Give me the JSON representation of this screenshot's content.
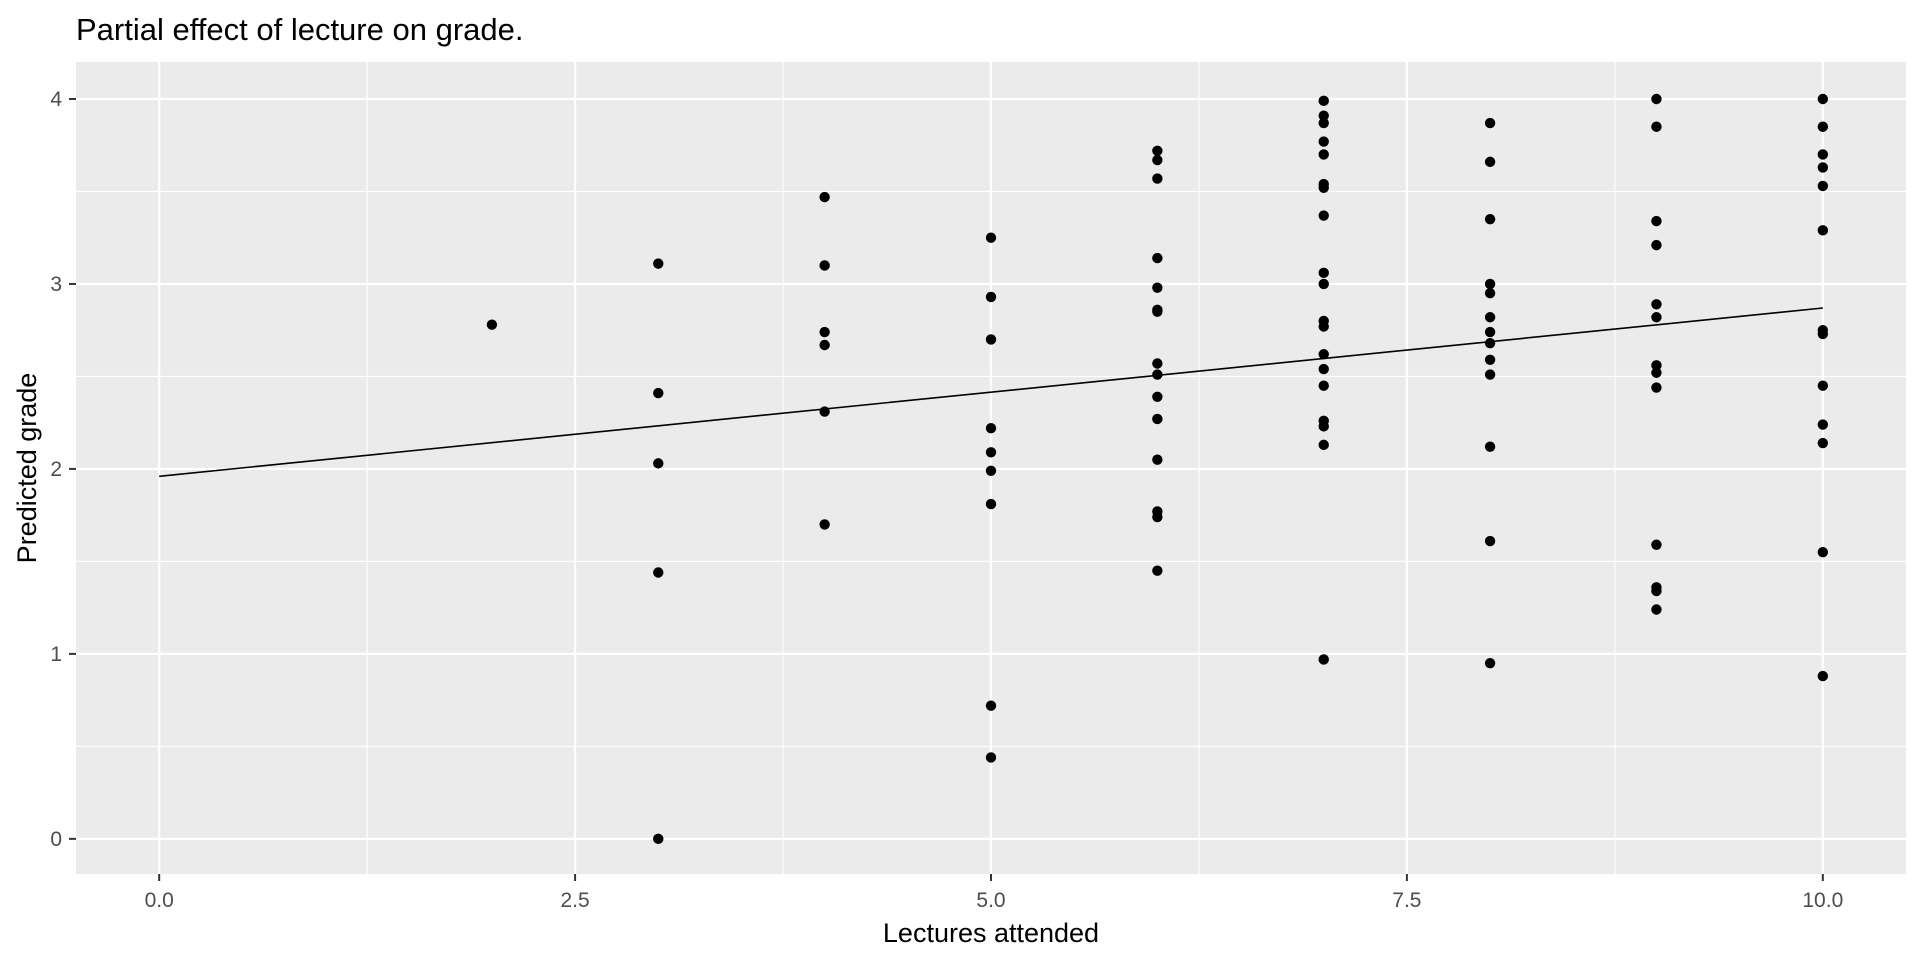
{
  "chart_data": {
    "type": "scatter",
    "title": "Partial effect of lecture on grade.",
    "xlabel": "Lectures attended",
    "ylabel": "Predicted grade",
    "xlim": [
      -0.5,
      10.5
    ],
    "ylim": [
      -0.19,
      4.2
    ],
    "x_ticks": [
      0,
      2.5,
      5,
      7.5,
      10
    ],
    "x_tick_labels": [
      "0.0",
      "2.5",
      "5.0",
      "7.5",
      "10.0"
    ],
    "y_ticks": [
      0,
      1,
      2,
      3,
      4
    ],
    "y_tick_labels": [
      "0",
      "1",
      "2",
      "3",
      "4"
    ],
    "grid": true,
    "colors": {
      "panel_background": "#EBEBEB",
      "grid": "#FFFFFF",
      "points": "#000000",
      "line": "#000000"
    },
    "series": [
      {
        "type": "scatter",
        "points": [
          [
            2,
            2.78
          ],
          [
            3,
            3.11
          ],
          [
            3,
            2.41
          ],
          [
            3,
            2.03
          ],
          [
            3,
            1.44
          ],
          [
            3,
            0.0
          ],
          [
            4,
            3.47
          ],
          [
            4,
            3.1
          ],
          [
            4,
            2.74
          ],
          [
            4,
            2.67
          ],
          [
            4,
            2.31
          ],
          [
            4,
            1.7
          ],
          [
            5,
            3.25
          ],
          [
            5,
            2.93
          ],
          [
            5,
            2.7
          ],
          [
            5,
            2.22
          ],
          [
            5,
            2.09
          ],
          [
            5,
            1.99
          ],
          [
            5,
            1.81
          ],
          [
            5,
            0.72
          ],
          [
            5,
            0.44
          ],
          [
            6,
            3.72
          ],
          [
            6,
            3.67
          ],
          [
            6,
            3.57
          ],
          [
            6,
            3.14
          ],
          [
            6,
            2.98
          ],
          [
            6,
            2.86
          ],
          [
            6,
            2.85
          ],
          [
            6,
            2.57
          ],
          [
            6,
            2.51
          ],
          [
            6,
            2.39
          ],
          [
            6,
            2.27
          ],
          [
            6,
            2.05
          ],
          [
            6,
            1.77
          ],
          [
            6,
            1.74
          ],
          [
            6,
            1.45
          ],
          [
            7,
            3.99
          ],
          [
            7,
            3.91
          ],
          [
            7,
            3.87
          ],
          [
            7,
            3.77
          ],
          [
            7,
            3.7
          ],
          [
            7,
            3.54
          ],
          [
            7,
            3.52
          ],
          [
            7,
            3.37
          ],
          [
            7,
            3.06
          ],
          [
            7,
            3.0
          ],
          [
            7,
            2.8
          ],
          [
            7,
            2.77
          ],
          [
            7,
            2.62
          ],
          [
            7,
            2.54
          ],
          [
            7,
            2.45
          ],
          [
            7,
            2.26
          ],
          [
            7,
            2.23
          ],
          [
            7,
            2.13
          ],
          [
            7,
            0.97
          ],
          [
            8,
            3.87
          ],
          [
            8,
            3.66
          ],
          [
            8,
            3.35
          ],
          [
            8,
            3.0
          ],
          [
            8,
            2.95
          ],
          [
            8,
            2.82
          ],
          [
            8,
            2.74
          ],
          [
            8,
            2.68
          ],
          [
            8,
            2.59
          ],
          [
            8,
            2.51
          ],
          [
            8,
            2.12
          ],
          [
            8,
            1.61
          ],
          [
            8,
            0.95
          ],
          [
            9,
            4.0
          ],
          [
            9,
            3.85
          ],
          [
            9,
            3.34
          ],
          [
            9,
            3.21
          ],
          [
            9,
            2.89
          ],
          [
            9,
            2.82
          ],
          [
            9,
            2.56
          ],
          [
            9,
            2.52
          ],
          [
            9,
            2.44
          ],
          [
            9,
            1.59
          ],
          [
            9,
            1.36
          ],
          [
            9,
            1.34
          ],
          [
            9,
            1.24
          ],
          [
            10,
            4.0
          ],
          [
            10,
            3.85
          ],
          [
            10,
            3.7
          ],
          [
            10,
            3.63
          ],
          [
            10,
            3.53
          ],
          [
            10,
            3.29
          ],
          [
            10,
            2.75
          ],
          [
            10,
            2.73
          ],
          [
            10,
            2.45
          ],
          [
            10,
            2.24
          ],
          [
            10,
            2.14
          ],
          [
            10,
            1.55
          ],
          [
            10,
            0.88
          ]
        ]
      },
      {
        "type": "line",
        "points": [
          [
            0,
            1.96
          ],
          [
            10,
            2.87
          ]
        ]
      }
    ]
  }
}
